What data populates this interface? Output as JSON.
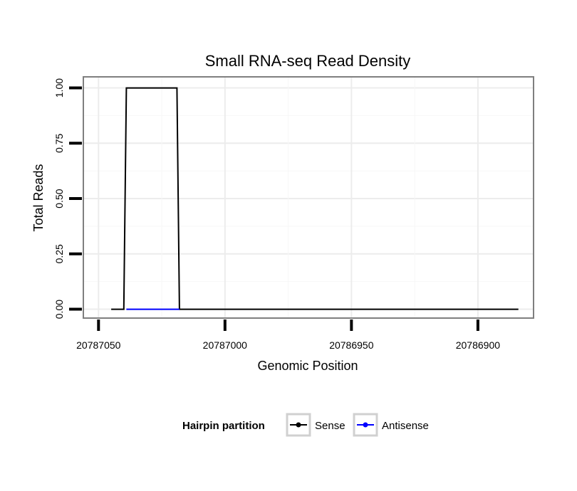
{
  "chart_data": {
    "type": "line",
    "title": "Small RNA-seq Read Density",
    "xlabel": "Genomic Position",
    "ylabel": "Total Reads",
    "x_reversed": true,
    "xlim": [
      20787056,
      20786878
    ],
    "ylim": [
      -0.04,
      1.05
    ],
    "x_ticks": [
      20787050,
      20787000,
      20786950,
      20786900
    ],
    "x_tick_labels": [
      "20787050",
      "20787000",
      "20786950",
      "20786900"
    ],
    "y_ticks": [
      0,
      0.25,
      0.5,
      0.75,
      1.0
    ],
    "y_tick_labels": [
      "0.00",
      "0.25",
      "0.50",
      "0.75",
      "1.00"
    ],
    "grid": true,
    "legend_position": "bottom",
    "legend_title": "Hairpin partition",
    "series": [
      {
        "name": "Sense",
        "color": "#000000",
        "x": [
          20787045,
          20787040,
          20787039,
          20787019,
          20787018,
          20786884
        ],
        "y": [
          0,
          0,
          1,
          1,
          0,
          0
        ]
      },
      {
        "name": "Antisense",
        "color": "#0000ff",
        "x": [
          20787039,
          20787018
        ],
        "y": [
          0,
          0
        ]
      }
    ]
  }
}
